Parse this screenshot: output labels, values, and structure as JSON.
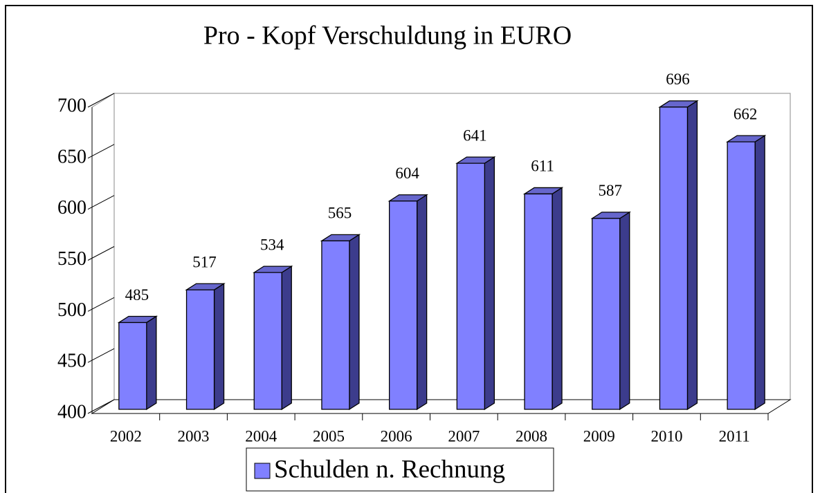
{
  "chart_data": {
    "type": "bar",
    "title": "Pro - Kopf Verschuldung in EURO",
    "categories": [
      "2002",
      "2003",
      "2004",
      "2005",
      "2006",
      "2007",
      "2008",
      "2009",
      "2010",
      "2011"
    ],
    "series": [
      {
        "name": "Schulden n. Rechnung",
        "color": "#8080ff",
        "values": [
          485,
          517,
          534,
          565,
          604,
          641,
          611,
          587,
          696,
          662
        ]
      }
    ],
    "ylim": [
      400,
      700
    ],
    "yticks": [
      400,
      450,
      500,
      550,
      600,
      650,
      700
    ],
    "legend": "bottom"
  }
}
